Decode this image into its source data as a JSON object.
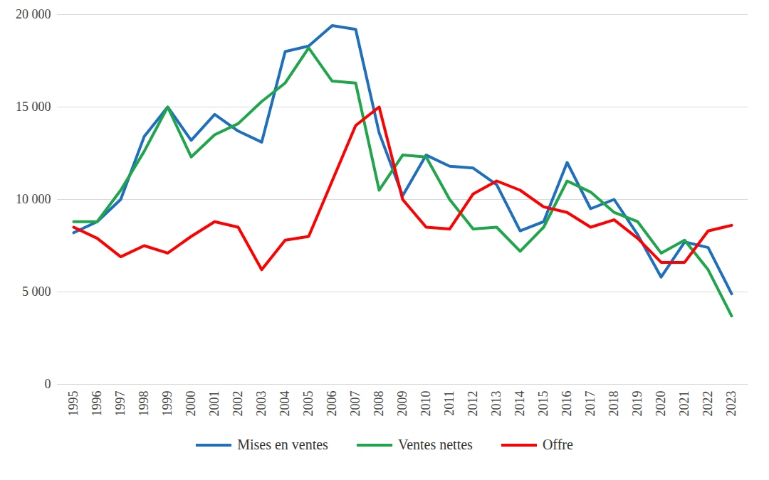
{
  "chart_data": {
    "type": "line",
    "categories": [
      "1995",
      "1996",
      "1997",
      "1998",
      "1999",
      "2000",
      "2001",
      "2002",
      "2003",
      "2004",
      "2005",
      "2006",
      "2007",
      "2008",
      "2009",
      "2010",
      "2011",
      "2012",
      "2013",
      "2014",
      "2015",
      "2016",
      "2017",
      "2018",
      "2019",
      "2020",
      "2021",
      "2022",
      "2023"
    ],
    "series": [
      {
        "name": "Mises en ventes",
        "color": "#1f6fbf",
        "values": [
          8200,
          8800,
          10000,
          13400,
          15000,
          13200,
          14600,
          13700,
          13100,
          18000,
          18300,
          19400,
          19200,
          13600,
          10200,
          12400,
          11800,
          11700,
          10800,
          8300,
          8800,
          12000,
          9500,
          10000,
          8100,
          5800,
          7700,
          7400,
          4900
        ]
      },
      {
        "name": "Ventes nettes",
        "color": "#1fa64a",
        "values": [
          8800,
          8800,
          10500,
          12600,
          15000,
          12300,
          13500,
          14100,
          15300,
          16300,
          18200,
          16400,
          16300,
          10500,
          12400,
          12300,
          10000,
          8400,
          8500,
          7200,
          8500,
          11000,
          10400,
          9300,
          8800,
          7100,
          7800,
          6200,
          3700
        ]
      },
      {
        "name": "Offre",
        "color": "#ff0000",
        "values": [
          8500,
          7900,
          6900,
          7500,
          7100,
          8000,
          8800,
          8500,
          6200,
          7800,
          8000,
          11000,
          14000,
          15000,
          10000,
          8500,
          8400,
          10300,
          11000,
          10500,
          9600,
          9300,
          8500,
          8900,
          7900,
          6600,
          6600,
          8300,
          8600
        ]
      }
    ],
    "ylim": [
      0,
      20000
    ],
    "yticks": [
      0,
      {
        "value": 5000,
        "label": "5 000"
      },
      {
        "value": 10000,
        "label": "10 000"
      },
      {
        "value": 15000,
        "label": "15 000"
      },
      {
        "value": 20000,
        "label": "20 000"
      }
    ],
    "grid": true,
    "legend": "bottom"
  }
}
